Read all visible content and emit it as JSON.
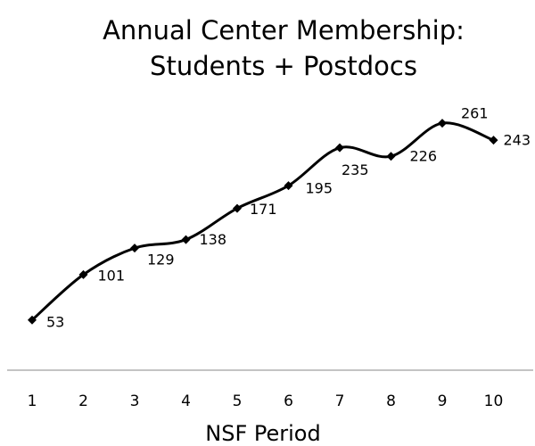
{
  "chart_data": {
    "type": "line",
    "title": [
      "Annual Center Membership:",
      "Students + Postdocs"
    ],
    "x_label": "NSF Period",
    "x": [
      1,
      2,
      3,
      4,
      5,
      6,
      7,
      8,
      9,
      10
    ],
    "xticks": [
      1,
      2,
      3,
      4,
      5,
      6,
      7,
      8,
      9,
      10
    ],
    "values": [
      53,
      101,
      129,
      138,
      171,
      195,
      235,
      226,
      261,
      243
    ],
    "color": "#000000",
    "smooth": true
  }
}
